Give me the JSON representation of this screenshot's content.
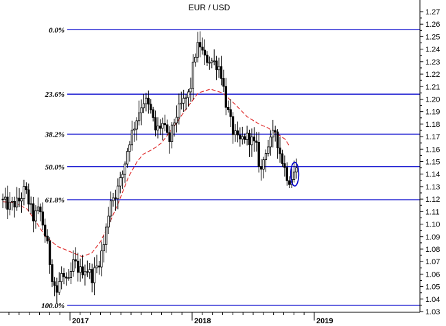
{
  "chart_data": {
    "type": "candlestick",
    "title": "EUR / USD",
    "xlabel": "",
    "ylabel": "",
    "ylim": [
      1.02,
      1.28
    ],
    "yticks": [
      "1.27",
      "1.26",
      "1.25",
      "1.24",
      "1.23",
      "1.22",
      "1.21",
      "1.20",
      "1.19",
      "1.18",
      "1.17",
      "1.16",
      "1.15",
      "1.14",
      "1.13",
      "1.12",
      "1.11",
      "1.10",
      "1.09",
      "1.08",
      "1.07",
      "1.06",
      "1.05",
      "1.04",
      "1.03"
    ],
    "x_years": [
      {
        "label": "2017",
        "x": 2017.0
      },
      {
        "label": "2018",
        "x": 2018.0
      },
      {
        "label": "2019",
        "x": 2019.0
      }
    ],
    "xlim": [
      2016.45,
      2019.0
    ],
    "fibonacci_levels": [
      {
        "label": "0.0%",
        "value": 1.2555
      },
      {
        "label": "23.6%",
        "value": 1.204
      },
      {
        "label": "38.2%",
        "value": 1.172
      },
      {
        "label": "50.0%",
        "value": 1.146
      },
      {
        "label": "61.8%",
        "value": 1.1195
      },
      {
        "label": "100.0%",
        "value": 1.035
      }
    ],
    "moving_average_color": "#e03030",
    "fib_line_color": "#0000cc",
    "candle_color": "#000000",
    "price_anchors": [
      [
        2016.45,
        1.12
      ],
      [
        2016.52,
        1.114
      ],
      [
        2016.6,
        1.118
      ],
      [
        2016.65,
        1.128
      ],
      [
        2016.72,
        1.105
      ],
      [
        2016.77,
        1.112
      ],
      [
        2016.83,
        1.085
      ],
      [
        2016.87,
        1.06
      ],
      [
        2016.91,
        1.045
      ],
      [
        2016.95,
        1.06
      ],
      [
        2017.0,
        1.05
      ],
      [
        2017.05,
        1.07
      ],
      [
        2017.1,
        1.062
      ],
      [
        2017.15,
        1.065
      ],
      [
        2017.2,
        1.058
      ],
      [
        2017.25,
        1.068
      ],
      [
        2017.3,
        1.085
      ],
      [
        2017.35,
        1.12
      ],
      [
        2017.4,
        1.125
      ],
      [
        2017.45,
        1.14
      ],
      [
        2017.5,
        1.165
      ],
      [
        2017.55,
        1.18
      ],
      [
        2017.6,
        1.195
      ],
      [
        2017.63,
        1.2
      ],
      [
        2017.68,
        1.19
      ],
      [
        2017.72,
        1.175
      ],
      [
        2017.78,
        1.18
      ],
      [
        2017.83,
        1.165
      ],
      [
        2017.88,
        1.185
      ],
      [
        2017.93,
        1.195
      ],
      [
        2018.0,
        1.205
      ],
      [
        2018.04,
        1.235
      ],
      [
        2018.08,
        1.245
      ],
      [
        2018.12,
        1.232
      ],
      [
        2018.16,
        1.232
      ],
      [
        2018.22,
        1.228
      ],
      [
        2018.25,
        1.225
      ],
      [
        2018.3,
        1.195
      ],
      [
        2018.35,
        1.175
      ],
      [
        2018.4,
        1.165
      ],
      [
        2018.45,
        1.17
      ],
      [
        2018.5,
        1.168
      ],
      [
        2018.55,
        1.16
      ],
      [
        2018.58,
        1.14
      ],
      [
        2018.62,
        1.16
      ],
      [
        2018.66,
        1.165
      ],
      [
        2018.7,
        1.175
      ],
      [
        2018.73,
        1.16
      ],
      [
        2018.76,
        1.15
      ],
      [
        2018.79,
        1.14
      ],
      [
        2018.82,
        1.135
      ],
      [
        2018.86,
        1.143
      ]
    ],
    "moving_average": [
      [
        2016.45,
        1.118
      ],
      [
        2016.55,
        1.117
      ],
      [
        2016.65,
        1.112
      ],
      [
        2016.72,
        1.102
      ],
      [
        2016.8,
        1.09
      ],
      [
        2016.9,
        1.082
      ],
      [
        2017.0,
        1.078
      ],
      [
        2017.1,
        1.074
      ],
      [
        2017.18,
        1.077
      ],
      [
        2017.25,
        1.086
      ],
      [
        2017.32,
        1.1
      ],
      [
        2017.4,
        1.118
      ],
      [
        2017.48,
        1.138
      ],
      [
        2017.55,
        1.15
      ],
      [
        2017.6,
        1.156
      ],
      [
        2017.68,
        1.16
      ],
      [
        2017.75,
        1.165
      ],
      [
        2017.85,
        1.178
      ],
      [
        2017.95,
        1.192
      ],
      [
        2018.05,
        1.205
      ],
      [
        2018.15,
        1.208
      ],
      [
        2018.25,
        1.205
      ],
      [
        2018.35,
        1.196
      ],
      [
        2018.45,
        1.186
      ],
      [
        2018.55,
        1.18
      ],
      [
        2018.62,
        1.177
      ],
      [
        2018.7,
        1.172
      ],
      [
        2018.76,
        1.168
      ],
      [
        2018.8,
        1.162
      ]
    ],
    "annotations": [
      {
        "type": "ellipse",
        "x": 2018.84,
        "y": 1.14,
        "rx": 0.033,
        "ry": 0.0095,
        "color": "#0000cc"
      }
    ]
  }
}
